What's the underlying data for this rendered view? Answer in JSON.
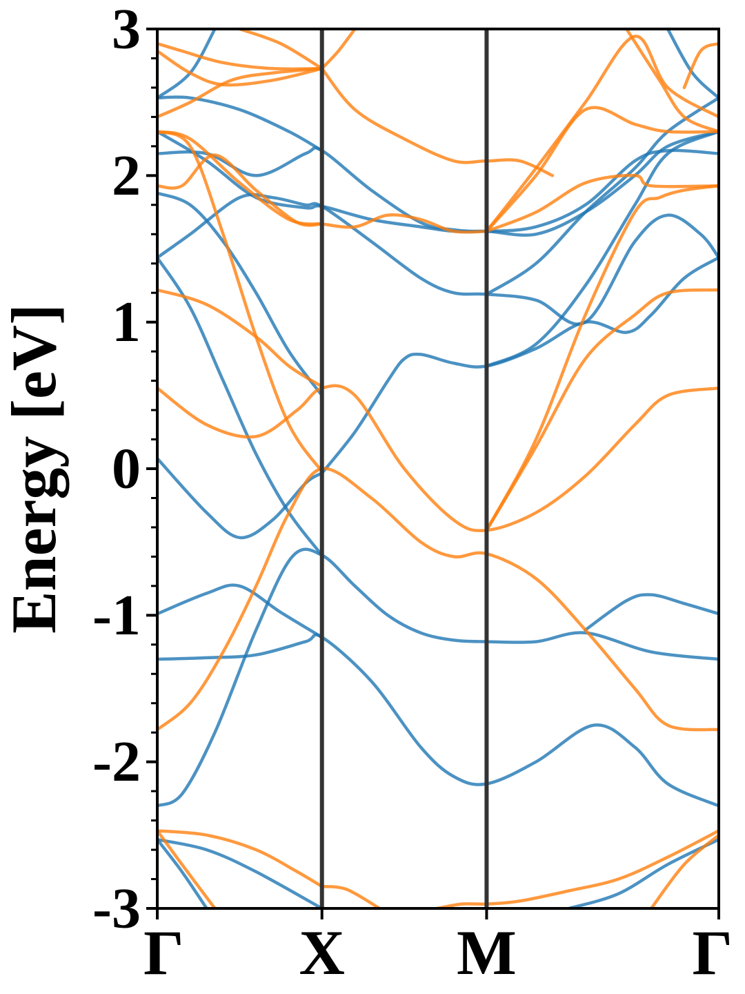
{
  "chart_data": {
    "type": "line",
    "title": "",
    "xlabel": "",
    "ylabel": "Energy [eV]",
    "ylim": [
      -3,
      3
    ],
    "y_ticks": [
      "-3",
      "-2",
      "-1",
      "0",
      "1",
      "2",
      "3"
    ],
    "k_points": [
      {
        "label": "Γ",
        "x": 0
      },
      {
        "label": "X",
        "x": 1
      },
      {
        "label": "M",
        "x": 2
      },
      {
        "label": "Γ",
        "x": 3.41
      }
    ],
    "grid": false,
    "legend": "none",
    "colors": {
      "spin_up": "#1f77b4",
      "spin_down": "#ff7f0e",
      "axis": "#000000",
      "kline": "#333333"
    },
    "series": [
      {
        "color_key": "spin_up",
        "x": [
          0,
          0.15,
          0.35,
          0.6,
          0.82,
          1,
          1.2,
          1.4,
          1.6,
          1.8,
          2,
          2.3,
          2.6,
          3.0,
          3.41
        ],
        "y": [
          -2.3,
          -2.22,
          -1.8,
          -1.1,
          -0.6,
          -0.59,
          -0.8,
          -1.0,
          -1.12,
          -1.17,
          -1.18,
          -1.18,
          -1.12,
          -1.25,
          -1.3
        ]
      },
      {
        "color_key": "spin_up",
        "x": [
          0,
          0.3,
          0.6,
          0.9,
          1,
          1.3,
          1.6,
          1.8,
          2,
          2.3,
          2.65,
          2.9,
          3.1,
          3.41
        ],
        "y": [
          -1.3,
          -1.29,
          -1.27,
          -1.18,
          -1.15,
          -1.45,
          -1.9,
          -2.1,
          -2.15,
          -2.0,
          -1.75,
          -1.9,
          -2.15,
          -2.3
        ]
      },
      {
        "color_key": "spin_up",
        "x": [
          0,
          0.3,
          0.5,
          0.7,
          0.9,
          1
        ],
        "y": [
          0.07,
          -0.3,
          -0.47,
          -0.35,
          -0.1,
          -0.03
        ]
      },
      {
        "color_key": "spin_up",
        "x": [
          1,
          1.2,
          1.4,
          1.5,
          1.6,
          1.8,
          2,
          2.3,
          2.6,
          2.85,
          3.0,
          3.2,
          3.41
        ],
        "y": [
          -0.03,
          0.25,
          0.6,
          0.75,
          0.78,
          0.72,
          0.7,
          0.82,
          1.0,
          0.93,
          1.05,
          1.3,
          1.44
        ]
      },
      {
        "color_key": "spin_up",
        "x": [
          0,
          0.3,
          0.5,
          0.75,
          1
        ],
        "y": [
          -0.99,
          -0.85,
          -0.8,
          -0.98,
          -1.15
        ]
      },
      {
        "color_key": "spin_up",
        "x": [
          2.6,
          2.85,
          3.0,
          3.2,
          3.41
        ],
        "y": [
          -1.1,
          -0.9,
          -0.86,
          -0.92,
          -0.99
        ]
      },
      {
        "color_key": "spin_up",
        "x": [
          0,
          0.2,
          0.4,
          0.6,
          0.8,
          1.0
        ],
        "y": [
          1.44,
          1.1,
          0.6,
          0.1,
          -0.3,
          -0.59
        ]
      },
      {
        "color_key": "spin_up",
        "x": [
          0,
          0.2,
          0.5,
          0.7,
          0.9,
          1.0,
          1.3,
          1.6,
          1.8,
          2,
          2.3,
          2.6,
          2.9,
          3.1,
          3.3,
          3.41
        ],
        "y": [
          1.44,
          1.6,
          1.85,
          1.85,
          1.8,
          1.79,
          1.55,
          1.3,
          1.2,
          1.19,
          1.15,
          1.0,
          1.55,
          1.73,
          1.6,
          1.44
        ]
      },
      {
        "color_key": "spin_up",
        "x": [
          0,
          0.2,
          0.4,
          0.6,
          0.8,
          1.0
        ],
        "y": [
          1.88,
          1.8,
          1.55,
          1.2,
          0.8,
          0.5
        ]
      },
      {
        "color_key": "spin_up",
        "x": [
          0,
          0.3,
          0.6,
          0.9,
          1.0,
          1.3,
          1.6,
          1.8,
          2.0,
          2.3,
          2.6,
          2.9,
          3.1,
          3.41
        ],
        "y": [
          2.3,
          2.1,
          1.85,
          1.78,
          1.79,
          1.7,
          1.65,
          1.62,
          1.62,
          1.6,
          1.75,
          2.0,
          2.2,
          2.3
        ]
      },
      {
        "color_key": "spin_up",
        "x": [
          0,
          0.3,
          0.6,
          0.9,
          1.0,
          1.3,
          1.6,
          1.8,
          2.0,
          2.3,
          2.6,
          2.9,
          3.1,
          3.41
        ],
        "y": [
          2.15,
          2.15,
          2.0,
          2.15,
          2.17,
          1.9,
          1.68,
          1.63,
          1.62,
          1.65,
          1.8,
          2.1,
          2.17,
          2.15
        ]
      },
      {
        "color_key": "spin_up",
        "x": [
          0,
          0.2,
          0.5,
          0.8,
          1.0
        ],
        "y": [
          2.53,
          2.53,
          2.45,
          2.3,
          2.17
        ]
      },
      {
        "color_key": "spin_up",
        "x": [
          0,
          0.2,
          0.35
        ],
        "y": [
          2.53,
          2.7,
          3.0
        ]
      },
      {
        "color_key": "spin_up",
        "x": [
          2.0,
          2.3,
          2.6,
          2.9,
          3.1,
          3.41
        ],
        "y": [
          0.7,
          0.85,
          1.25,
          1.8,
          2.15,
          2.3
        ]
      },
      {
        "color_key": "spin_up",
        "x": [
          2.0,
          2.3,
          2.6,
          2.9,
          3.1,
          3.41
        ],
        "y": [
          1.19,
          1.4,
          1.75,
          2.05,
          2.3,
          2.53
        ]
      },
      {
        "color_key": "spin_up",
        "x": [
          3.1,
          3.25,
          3.41
        ],
        "y": [
          3.0,
          2.7,
          2.53
        ]
      },
      {
        "color_key": "spin_up",
        "x": [
          0,
          0.15,
          0.3
        ],
        "y": [
          -2.53,
          -2.75,
          -3.0
        ]
      },
      {
        "color_key": "spin_up",
        "x": [
          0,
          0.3,
          0.6,
          1.0
        ],
        "y": [
          -2.53,
          -2.6,
          -2.75,
          -3.0
        ]
      },
      {
        "color_key": "spin_up",
        "x": [
          2.5,
          2.8,
          3.1,
          3.41
        ],
        "y": [
          -3.0,
          -2.9,
          -2.7,
          -2.53
        ]
      },
      {
        "color_key": "spin_down",
        "x": [
          0,
          0.2,
          0.4,
          0.6,
          0.8,
          1.0,
          1.3,
          1.6,
          1.8,
          2.0,
          2.3,
          2.6,
          2.9,
          3.1,
          3.41
        ],
        "y": [
          -1.78,
          -1.6,
          -1.25,
          -0.8,
          -0.3,
          0.0,
          -0.2,
          -0.5,
          -0.6,
          -0.58,
          -0.75,
          -1.1,
          -1.5,
          -1.75,
          -1.78
        ]
      },
      {
        "color_key": "spin_down",
        "x": [
          0,
          0.3,
          0.6,
          0.85,
          1.0,
          1.2,
          1.5,
          1.8,
          2.0,
          2.3,
          2.6,
          2.9,
          3.1,
          3.41
        ],
        "y": [
          0.55,
          0.3,
          0.22,
          0.4,
          0.55,
          0.5,
          0.0,
          -0.35,
          -0.42,
          -0.3,
          -0.05,
          0.3,
          0.5,
          0.55
        ]
      },
      {
        "color_key": "spin_down",
        "x": [
          0,
          0.3,
          0.6,
          0.8,
          1.0
        ],
        "y": [
          1.22,
          1.12,
          0.9,
          0.7,
          0.56
        ]
      },
      {
        "color_key": "spin_down",
        "x": [
          2.0,
          2.3,
          2.6,
          2.9,
          3.1,
          3.41
        ],
        "y": [
          -0.42,
          0.15,
          0.75,
          1.05,
          1.2,
          1.22
        ]
      },
      {
        "color_key": "spin_down",
        "x": [
          2.0,
          2.3,
          2.6,
          2.9,
          3.05,
          3.2,
          3.41
        ],
        "y": [
          -0.42,
          0.2,
          1.05,
          1.75,
          1.85,
          1.9,
          1.93
        ]
      },
      {
        "color_key": "spin_down",
        "x": [
          0,
          0.2,
          0.4,
          0.6,
          0.8,
          1.0
        ],
        "y": [
          2.3,
          2.2,
          1.6,
          0.9,
          0.3,
          -0.02
        ]
      },
      {
        "color_key": "spin_down",
        "x": [
          0,
          0.15,
          0.35,
          0.6,
          0.85,
          1.0
        ],
        "y": [
          1.93,
          1.93,
          2.14,
          1.9,
          1.68,
          1.67
        ]
      },
      {
        "color_key": "spin_down",
        "x": [
          1.0,
          1.2,
          1.4,
          1.6,
          1.8,
          2.0
        ],
        "y": [
          1.67,
          1.65,
          1.73,
          1.7,
          1.62,
          1.62
        ]
      },
      {
        "color_key": "spin_down",
        "x": [
          2.0,
          2.3,
          2.6,
          2.9,
          3.0,
          3.41
        ],
        "y": [
          1.62,
          1.75,
          1.95,
          2.0,
          1.93,
          1.93
        ]
      },
      {
        "color_key": "spin_down",
        "x": [
          0,
          0.2,
          0.5,
          0.8,
          1.0
        ],
        "y": [
          2.3,
          2.25,
          1.95,
          1.7,
          1.67
        ]
      },
      {
        "color_key": "spin_down",
        "x": [
          0,
          0.2,
          0.45,
          0.7,
          1.0
        ],
        "y": [
          2.4,
          2.5,
          2.65,
          2.7,
          2.73
        ]
      },
      {
        "color_key": "spin_down",
        "x": [
          0,
          0.2,
          0.4,
          0.7,
          1.0
        ],
        "y": [
          2.85,
          2.7,
          2.62,
          2.65,
          2.73
        ]
      },
      {
        "color_key": "spin_down",
        "x": [
          0,
          0.15,
          0.4,
          0.7,
          1.0
        ],
        "y": [
          2.9,
          2.85,
          2.77,
          2.73,
          2.73
        ]
      },
      {
        "color_key": "spin_down",
        "x": [
          0.5,
          0.75,
          1.0
        ],
        "y": [
          3.0,
          2.9,
          2.73
        ]
      },
      {
        "color_key": "spin_down",
        "x": [
          1.0,
          1.1,
          1.2
        ],
        "y": [
          2.73,
          2.85,
          3.0
        ]
      },
      {
        "color_key": "spin_down",
        "x": [
          1.0,
          1.2,
          1.5,
          1.8,
          2.0,
          2.2,
          2.4
        ],
        "y": [
          2.73,
          2.45,
          2.25,
          2.1,
          2.1,
          2.1,
          2.0
        ]
      },
      {
        "color_key": "spin_down",
        "x": [
          2.0,
          2.3,
          2.6,
          2.9,
          3.1,
          3.41
        ],
        "y": [
          1.62,
          2.0,
          2.45,
          2.35,
          2.3,
          2.3
        ]
      },
      {
        "color_key": "spin_down",
        "x": [
          2.0,
          2.3,
          2.6,
          2.9,
          3.1,
          3.41
        ],
        "y": [
          1.62,
          2.05,
          2.5,
          2.95,
          2.6,
          2.4
        ]
      },
      {
        "color_key": "spin_down",
        "x": [
          2.85,
          3.05,
          3.2,
          3.41
        ],
        "y": [
          3.0,
          2.65,
          2.4,
          2.3
        ]
      },
      {
        "color_key": "spin_down",
        "x": [
          3.2,
          3.3,
          3.41
        ],
        "y": [
          2.6,
          2.85,
          2.9
        ]
      },
      {
        "color_key": "spin_down",
        "x": [
          0,
          0.3,
          0.6,
          0.85,
          1.0
        ],
        "y": [
          -2.47,
          -2.5,
          -2.6,
          -2.75,
          -2.85
        ]
      },
      {
        "color_key": "spin_down",
        "x": [
          0,
          0.15,
          0.35
        ],
        "y": [
          -2.47,
          -2.7,
          -3.0
        ]
      },
      {
        "color_key": "spin_down",
        "x": [
          1.0,
          1.15,
          1.35
        ],
        "y": [
          -2.85,
          -2.87,
          -3.0
        ]
      },
      {
        "color_key": "spin_down",
        "x": [
          1.7,
          1.85,
          2.0,
          2.2,
          2.5,
          2.8,
          3.1,
          3.41
        ],
        "y": [
          -3.0,
          -2.97,
          -2.97,
          -2.95,
          -2.88,
          -2.8,
          -2.65,
          -2.47
        ]
      },
      {
        "color_key": "spin_down",
        "x": [
          3.0,
          3.2,
          3.41
        ],
        "y": [
          -3.0,
          -2.7,
          -2.5
        ]
      }
    ]
  }
}
